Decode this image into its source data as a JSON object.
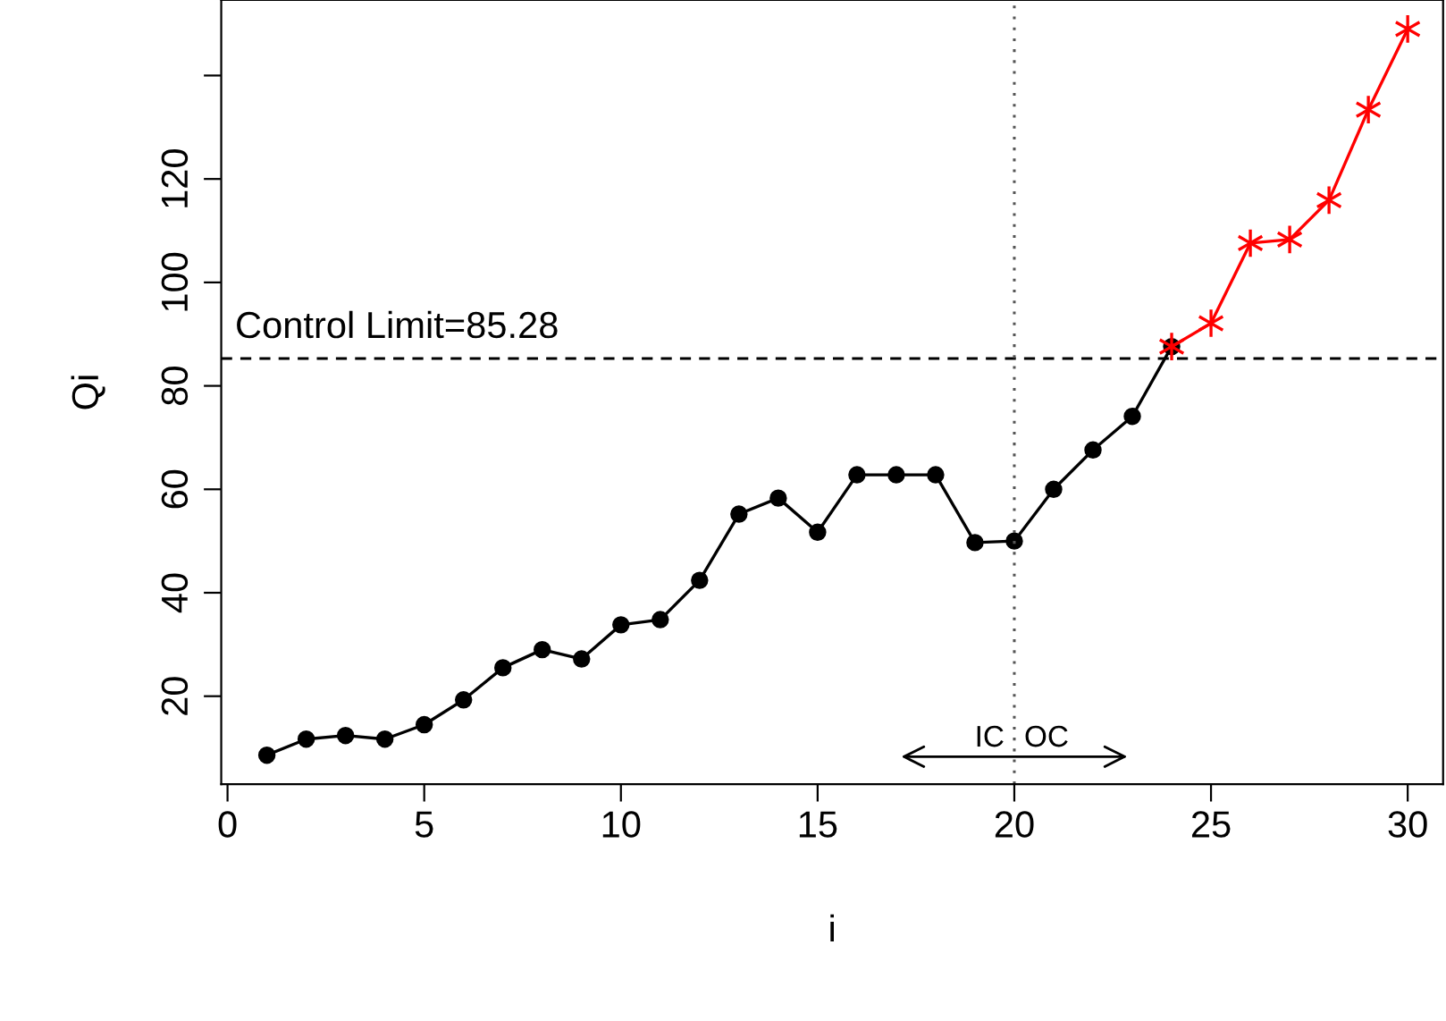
{
  "chart_data": {
    "type": "line",
    "xlabel": "i",
    "ylabel": "Qi",
    "series": [
      {
        "color": "#000000",
        "marker": "circle",
        "x": [
          1,
          2,
          3,
          4,
          5,
          6,
          7,
          8,
          9,
          10,
          11,
          12,
          13,
          14,
          15,
          16,
          17,
          18,
          19,
          20,
          21,
          22,
          23,
          24
        ],
        "values": [
          8.6,
          11.7,
          12.4,
          11.7,
          14.5,
          19.3,
          25.5,
          29.0,
          27.2,
          33.8,
          34.8,
          42.4,
          55.2,
          58.3,
          51.7,
          62.8,
          62.8,
          62.8,
          49.7,
          50.0,
          60.0,
          67.6,
          74.1,
          87.6
        ]
      },
      {
        "color": "#ff0000",
        "marker": "cross",
        "x": [
          24,
          25,
          26,
          27,
          28,
          29,
          30
        ],
        "values": [
          87.6,
          92.1,
          107.6,
          108.3,
          115.9,
          133.4,
          149.0
        ]
      }
    ],
    "xlim": [
      -0.16,
      30.9
    ],
    "ylim": [
      3,
      154.6
    ],
    "xticks": [
      0,
      5,
      10,
      15,
      20,
      25,
      30
    ],
    "yticks": [
      20,
      40,
      60,
      80,
      100,
      120,
      {
        "value": 140,
        "label": null
      }
    ],
    "ref_lines": [
      {
        "axis": "y",
        "value": 85.28,
        "label": "Control Limit=85.28",
        "line_style": "dashed",
        "color": "#000000"
      },
      {
        "axis": "x",
        "value": 20,
        "line_style": "dotted",
        "color": "#555555"
      }
    ],
    "annotations": [
      "IC",
      "OC"
    ],
    "grid": false,
    "legend": false
  }
}
